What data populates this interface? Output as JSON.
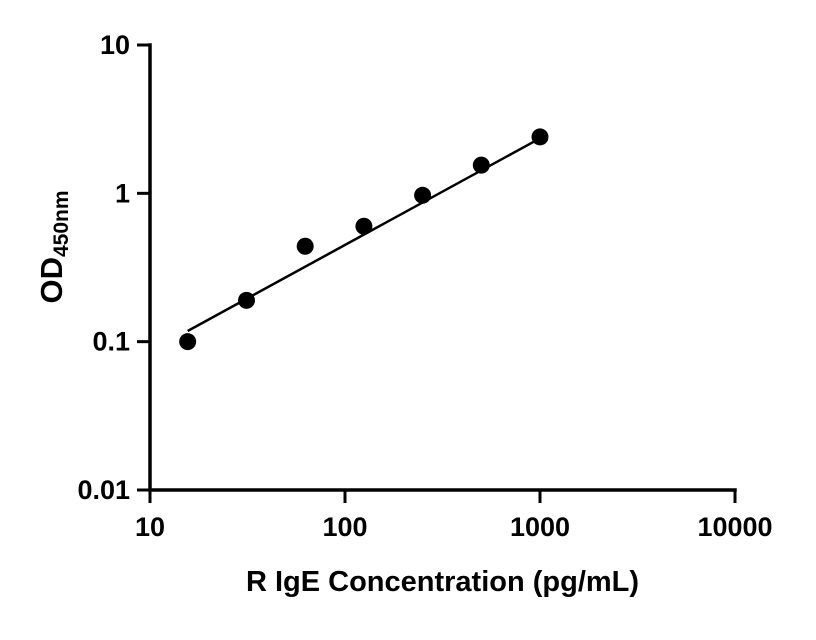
{
  "chart_data": {
    "type": "scatter",
    "title": "",
    "xlabel": "R IgE Concentration (pg/mL)",
    "ylabel_main": "OD",
    "ylabel_sub": "450nm",
    "xscale": "log",
    "yscale": "log",
    "xlim": [
      10,
      10000
    ],
    "ylim": [
      0.01,
      10
    ],
    "x_ticks": [
      10,
      100,
      1000,
      10000
    ],
    "x_tick_labels": [
      "10",
      "100",
      "1000",
      "10000"
    ],
    "y_ticks": [
      0.01,
      0.1,
      1,
      10
    ],
    "y_tick_labels": [
      "0.01",
      "0.1",
      "1",
      "10"
    ],
    "x": [
      15.6,
      31.25,
      62.5,
      125,
      250,
      500,
      1000
    ],
    "y": [
      0.1,
      0.19,
      0.44,
      0.6,
      0.97,
      1.55,
      2.4
    ],
    "fit_line": {
      "x": [
        15.6,
        1000
      ],
      "y": [
        0.118,
        2.35
      ]
    },
    "grid": false,
    "legend": "none",
    "marker_color": "#000000",
    "line_color": "#000000",
    "axis_color": "#000000",
    "background_color": "#ffffff"
  }
}
